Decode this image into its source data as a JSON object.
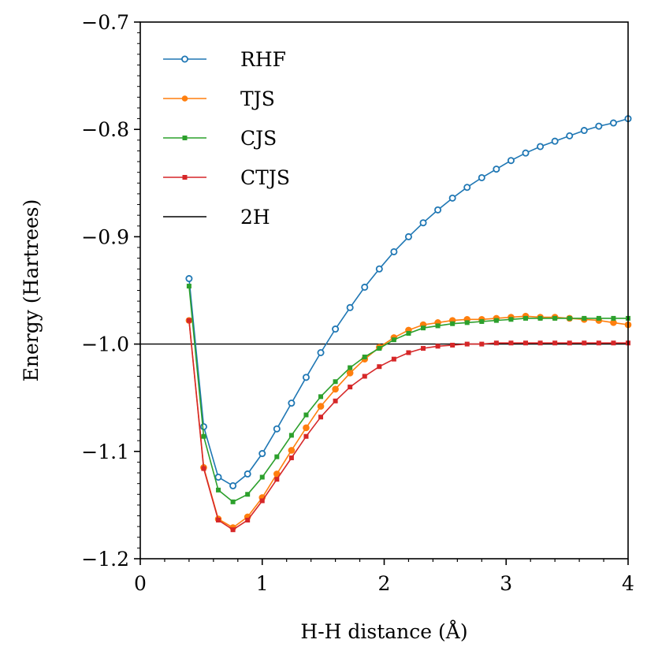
{
  "chart_data": {
    "type": "line",
    "title": "",
    "xlabel": "H-H distance (Å)",
    "ylabel": "Energy (Hartrees)",
    "xlim": [
      0,
      4
    ],
    "ylim": [
      -1.2,
      -0.7
    ],
    "xticks": [
      0,
      1,
      2,
      3,
      4
    ],
    "xtick_labels": [
      "0",
      "1",
      "2",
      "3",
      "4"
    ],
    "yticks": [
      -1.2,
      -1.1,
      -1.0,
      -0.9,
      -0.8,
      -0.7
    ],
    "ytick_labels": [
      "−1.2",
      "−1.1",
      "−1.0",
      "−0.9",
      "−0.8",
      "−0.7"
    ],
    "x": [
      0.4,
      0.52,
      0.64,
      0.76,
      0.88,
      1.0,
      1.12,
      1.24,
      1.36,
      1.48,
      1.6,
      1.72,
      1.84,
      1.96,
      2.08,
      2.2,
      2.32,
      2.44,
      2.56,
      2.68,
      2.8,
      2.92,
      3.04,
      3.16,
      3.28,
      3.4,
      3.52,
      3.64,
      3.76,
      3.88,
      4.0
    ],
    "series": [
      {
        "name": "RHF",
        "color": "#1f77b4",
        "marker": "circle-hollow",
        "values": [
          -0.939,
          -1.077,
          -1.124,
          -1.132,
          -1.121,
          -1.102,
          -1.079,
          -1.055,
          -1.031,
          -1.008,
          -0.986,
          -0.966,
          -0.947,
          -0.93,
          -0.914,
          -0.9,
          -0.887,
          -0.875,
          -0.864,
          -0.854,
          -0.845,
          -0.837,
          -0.829,
          -0.822,
          -0.816,
          -0.811,
          -0.806,
          -0.801,
          -0.797,
          -0.794,
          -0.79
        ]
      },
      {
        "name": "TJS",
        "color": "#ff7f0e",
        "marker": "circle",
        "values": [
          -0.978,
          -1.115,
          -1.163,
          -1.171,
          -1.161,
          -1.143,
          -1.121,
          -1.099,
          -1.078,
          -1.058,
          -1.042,
          -1.027,
          -1.014,
          -1.003,
          -0.994,
          -0.987,
          -0.982,
          -0.98,
          -0.978,
          -0.977,
          -0.977,
          -0.976,
          -0.975,
          -0.974,
          -0.975,
          -0.975,
          -0.976,
          -0.977,
          -0.978,
          -0.98,
          -0.982
        ]
      },
      {
        "name": "CJS",
        "color": "#2ca02c",
        "marker": "square",
        "values": [
          -0.946,
          -1.086,
          -1.136,
          -1.147,
          -1.14,
          -1.124,
          -1.105,
          -1.085,
          -1.066,
          -1.049,
          -1.035,
          -1.022,
          -1.012,
          -1.004,
          -0.996,
          -0.99,
          -0.985,
          -0.983,
          -0.981,
          -0.98,
          -0.979,
          -0.978,
          -0.977,
          -0.976,
          -0.976,
          -0.976,
          -0.976,
          -0.976,
          -0.976,
          -0.976,
          -0.976
        ]
      },
      {
        "name": "CTJS",
        "color": "#d62728",
        "marker": "square",
        "values": [
          -0.978,
          -1.116,
          -1.164,
          -1.173,
          -1.164,
          -1.146,
          -1.126,
          -1.106,
          -1.086,
          -1.068,
          -1.053,
          -1.04,
          -1.03,
          -1.021,
          -1.014,
          -1.008,
          -1.004,
          -1.002,
          -1.001,
          -1.0,
          -1.0,
          -0.999,
          -0.999,
          -0.999,
          -0.999,
          -0.999,
          -0.999,
          -0.999,
          -0.999,
          -0.999,
          -0.999
        ]
      }
    ],
    "reference_line": {
      "name": "2H",
      "y": -1.0,
      "color": "#000000"
    },
    "legend_position": "top-left"
  }
}
